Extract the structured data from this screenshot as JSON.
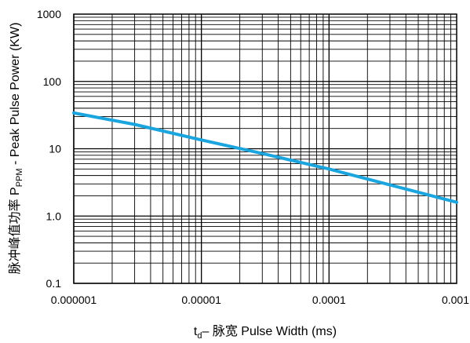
{
  "chart_data": {
    "type": "line",
    "x_scale": "log",
    "y_scale": "log",
    "xlim": [
      1e-06,
      0.001
    ],
    "ylim": [
      0.1,
      1000
    ],
    "x_ticks": [
      {
        "value": 1e-06,
        "label": "0.000001"
      },
      {
        "value": 1e-05,
        "label": "0.00001"
      },
      {
        "value": 0.0001,
        "label": "0.0001"
      },
      {
        "value": 0.001,
        "label": "0.001"
      }
    ],
    "y_ticks": [
      {
        "value": 0.1,
        "label": "0.1"
      },
      {
        "value": 1,
        "label": "1.0"
      },
      {
        "value": 10,
        "label": "10"
      },
      {
        "value": 100,
        "label": "100"
      },
      {
        "value": 1000,
        "label": "1000"
      }
    ],
    "xlabel": {
      "main": "t",
      "sub": "d",
      "rest": "– 脉宽 Pulse Width (ms)"
    },
    "ylabel": {
      "pre": "脉冲峰值功率 P",
      "sub": "PPM",
      "post": " - Peak Pulse Power (KW)"
    },
    "grid": true,
    "series": [
      {
        "color": "#1ba5de",
        "points": [
          {
            "x": 1e-06,
            "y": 34
          },
          {
            "x": 3e-06,
            "y": 23
          },
          {
            "x": 1e-05,
            "y": 13.5
          },
          {
            "x": 3e-05,
            "y": 8.5
          },
          {
            "x": 0.0001,
            "y": 5.0
          },
          {
            "x": 0.0003,
            "y": 2.9
          },
          {
            "x": 0.001,
            "y": 1.6
          }
        ]
      }
    ]
  }
}
